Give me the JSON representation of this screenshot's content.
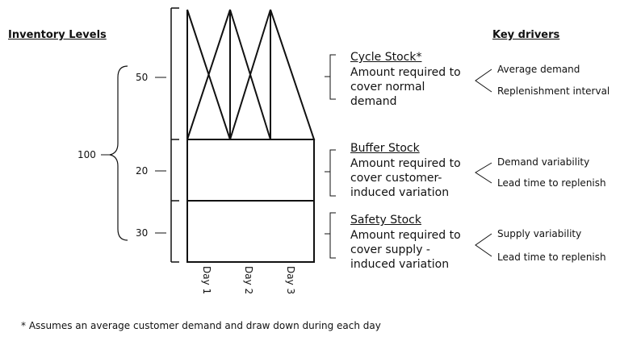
{
  "headers": {
    "inventory_levels": "Inventory Levels",
    "key_drivers": "Key drivers"
  },
  "total_level": "100",
  "stocks": [
    {
      "level": "50",
      "title": "Cycle Stock*",
      "description": "Amount required to\ncover normal\ndemand",
      "drivers": [
        "Average demand",
        "Replenishment interval"
      ]
    },
    {
      "level": "20",
      "title": "Buffer Stock",
      "description": "Amount required to\ncover customer-\ninduced variation",
      "drivers": [
        "Demand variability",
        "Lead time to replenish"
      ]
    },
    {
      "level": "30",
      "title": "Safety Stock",
      "description": "Amount required to\ncover supply -\ninduced variation",
      "drivers": [
        "Supply variability",
        "Lead time to replenish"
      ]
    }
  ],
  "days": [
    "Day 1",
    "Day 2",
    "Day 3"
  ],
  "footnote": "* Assumes an average customer demand and draw down during each day"
}
